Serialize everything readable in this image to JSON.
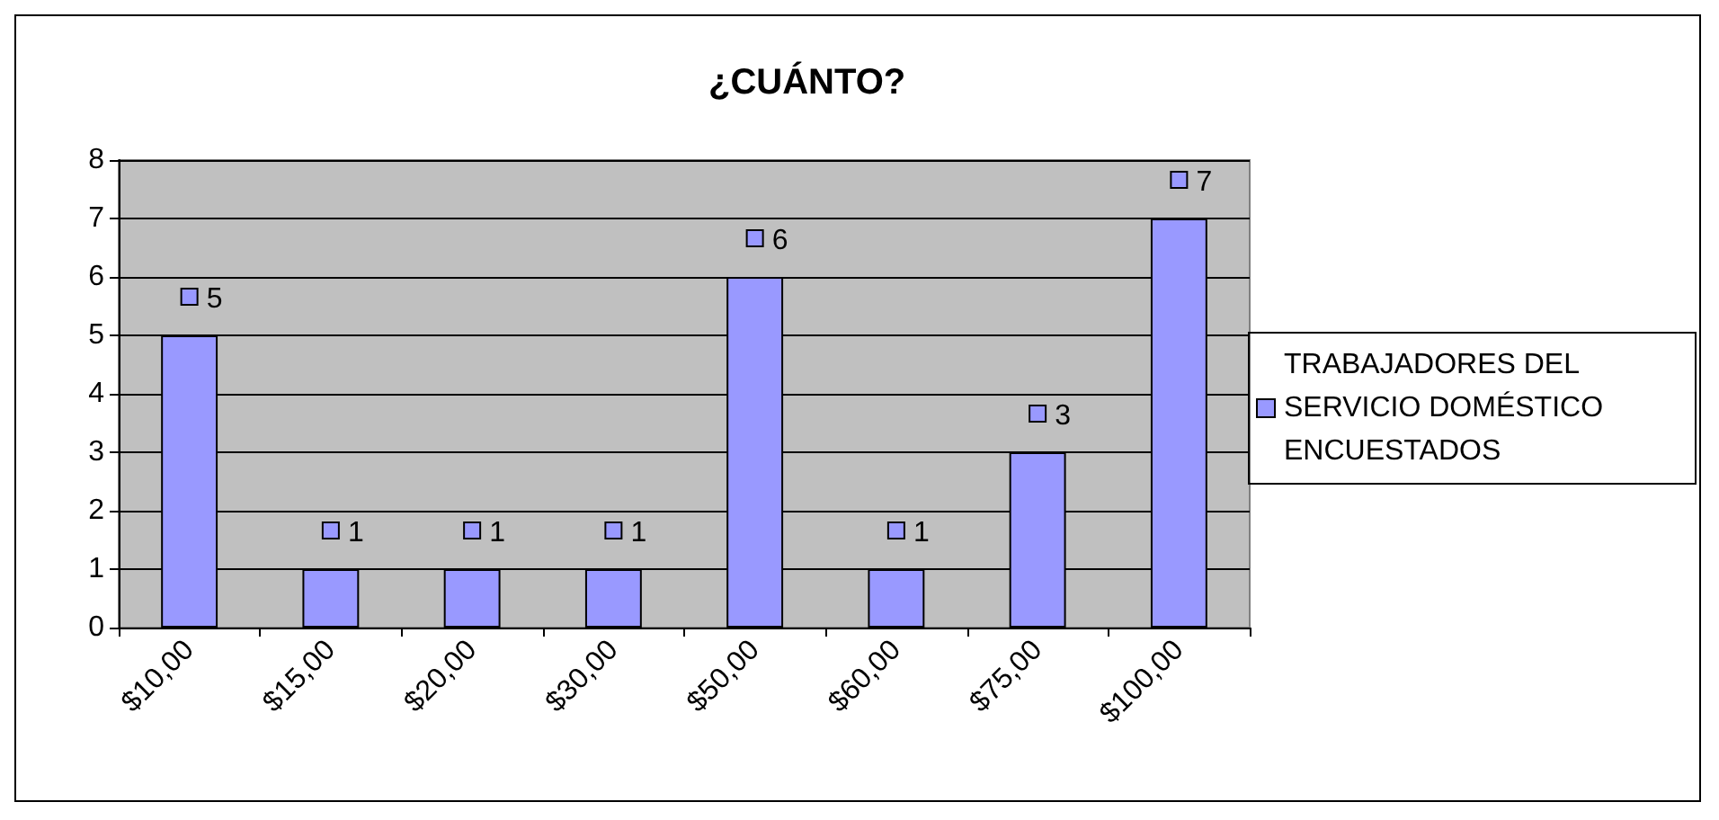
{
  "chart_data": {
    "type": "bar",
    "title": "¿CUÁNTO?",
    "categories": [
      "$10,00",
      "$15,00",
      "$20,00",
      "$30,00",
      "$50,00",
      "$60,00",
      "$75,00",
      "$100,00"
    ],
    "series": [
      {
        "name": "TRABAJADORES DEL SERVICIO DOMÉSTICO ENCUESTADOS",
        "color": "#9999ff",
        "values": [
          5,
          1,
          1,
          1,
          6,
          1,
          3,
          7
        ]
      }
    ],
    "ylim": [
      0,
      8
    ],
    "yticks": [
      0,
      1,
      2,
      3,
      4,
      5,
      6,
      7,
      8
    ],
    "grid": "y",
    "legend": "right",
    "data_labels": true
  }
}
